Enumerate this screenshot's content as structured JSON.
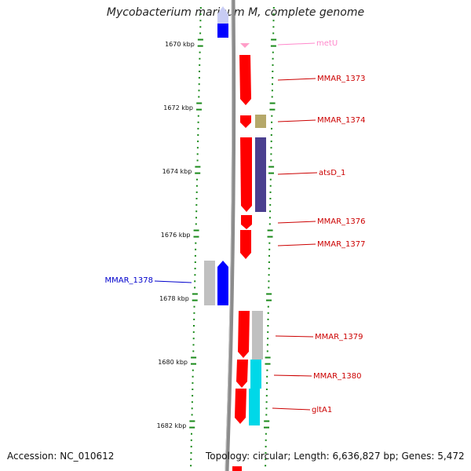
{
  "title": "Mycobacterium marinum M, complete genome",
  "accession": "Accession: NC_010612",
  "summary": "Topology: circular; Length: 6,636,827 bp; Genes: 5,472",
  "colors": {
    "forward_cds": "#ff0000",
    "reverse_cds": "#0000ff",
    "trna": "#ff9ec8",
    "gray_feature": "#c0c0c0",
    "olive_feature": "#b5a86a",
    "purple_feature": "#4b3f8f",
    "cyan_feature": "#00d8e8",
    "tick_green": "#1a8a1a",
    "backbone": "#8c8c8c",
    "label_red": "#cc0000",
    "label_blue": "#0000cc",
    "label_pink": "#ff88cc"
  },
  "ticks": [
    {
      "label": "1670 kbp",
      "value": 1670
    },
    {
      "label": "1672 kbp",
      "value": 1672
    },
    {
      "label": "1674 kbp",
      "value": 1674
    },
    {
      "label": "1676 kbp",
      "value": 1676
    },
    {
      "label": "1678 kbp",
      "value": 1678
    },
    {
      "label": "1680 kbp",
      "value": 1680
    },
    {
      "label": "1682 kbp",
      "value": 1682
    }
  ],
  "genes": [
    {
      "name": "metU",
      "strand": "forward",
      "color": "trna"
    },
    {
      "name": "MMAR_1373",
      "strand": "forward",
      "color": "forward_cds"
    },
    {
      "name": "MMAR_1374",
      "strand": "forward",
      "color": "forward_cds"
    },
    {
      "name": "atsD_1",
      "strand": "forward",
      "color": "forward_cds"
    },
    {
      "name": "MMAR_1376",
      "strand": "forward",
      "color": "forward_cds"
    },
    {
      "name": "MMAR_1377",
      "strand": "forward",
      "color": "forward_cds"
    },
    {
      "name": "MMAR_1378",
      "strand": "reverse",
      "color": "reverse_cds"
    },
    {
      "name": "MMAR_1379",
      "strand": "forward",
      "color": "forward_cds"
    },
    {
      "name": "MMAR_1380",
      "strand": "forward",
      "color": "forward_cds"
    },
    {
      "name": "gltA1",
      "strand": "forward",
      "color": "forward_cds"
    }
  ]
}
